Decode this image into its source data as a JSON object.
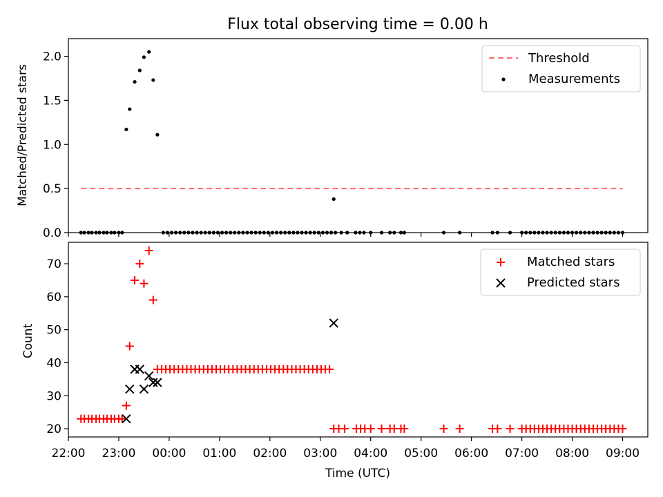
{
  "chart_data": [
    {
      "type": "scatter",
      "title": "Flux total observing time = 0.00 h",
      "xlabel": "",
      "ylabel": "Matched/Predicted stars",
      "xlim": [
        "22:00",
        "09:30"
      ],
      "ylim": [
        0,
        2.2
      ],
      "yticks": [
        "0.0",
        "0.5",
        "1.0",
        "1.5",
        "2.0"
      ],
      "grid": false,
      "legend_position": "top-right",
      "threshold": {
        "name": "Threshold",
        "value": 0.5,
        "x_range": [
          "22:15",
          "09:00"
        ],
        "color": "#ff6b6b"
      },
      "series": [
        {
          "name": "Measurements",
          "color": "#000000",
          "points": [
            [
              "22:15",
              0
            ],
            [
              "22:19",
              0
            ],
            [
              "22:24",
              0
            ],
            [
              "22:28",
              0
            ],
            [
              "22:33",
              0
            ],
            [
              "22:37",
              0
            ],
            [
              "22:42",
              0
            ],
            [
              "22:46",
              0
            ],
            [
              "22:51",
              0
            ],
            [
              "22:55",
              0
            ],
            [
              "23:00",
              0
            ],
            [
              "23:04",
              0
            ],
            [
              "23:09",
              1.17
            ],
            [
              "23:13",
              1.4
            ],
            [
              "23:19",
              1.71
            ],
            [
              "23:25",
              1.84
            ],
            [
              "23:30",
              1.99
            ],
            [
              "23:36",
              2.05
            ],
            [
              "23:41",
              1.73
            ],
            [
              "23:46",
              1.11
            ],
            [
              "23:53",
              0
            ],
            [
              "23:58",
              0
            ],
            [
              "00:03",
              0
            ],
            [
              "00:08",
              0
            ],
            [
              "00:13",
              0
            ],
            [
              "00:18",
              0
            ],
            [
              "00:23",
              0
            ],
            [
              "00:28",
              0
            ],
            [
              "00:33",
              0
            ],
            [
              "00:38",
              0
            ],
            [
              "00:43",
              0
            ],
            [
              "00:48",
              0
            ],
            [
              "00:53",
              0
            ],
            [
              "00:58",
              0
            ],
            [
              "01:03",
              0
            ],
            [
              "01:08",
              0
            ],
            [
              "01:13",
              0
            ],
            [
              "01:18",
              0
            ],
            [
              "01:23",
              0
            ],
            [
              "01:28",
              0
            ],
            [
              "01:33",
              0
            ],
            [
              "01:38",
              0
            ],
            [
              "01:43",
              0
            ],
            [
              "01:48",
              0
            ],
            [
              "01:53",
              0
            ],
            [
              "01:58",
              0
            ],
            [
              "02:03",
              0
            ],
            [
              "02:08",
              0
            ],
            [
              "02:13",
              0
            ],
            [
              "02:18",
              0
            ],
            [
              "02:23",
              0
            ],
            [
              "02:28",
              0
            ],
            [
              "02:33",
              0
            ],
            [
              "02:38",
              0
            ],
            [
              "02:43",
              0
            ],
            [
              "02:48",
              0
            ],
            [
              "02:53",
              0
            ],
            [
              "02:58",
              0
            ],
            [
              "03:03",
              0
            ],
            [
              "03:08",
              0
            ],
            [
              "03:13",
              0
            ],
            [
              "03:16",
              0.38
            ],
            [
              "03:18",
              0
            ],
            [
              "03:25",
              0
            ],
            [
              "03:32",
              0
            ],
            [
              "03:42",
              0
            ],
            [
              "03:47",
              0
            ],
            [
              "03:52",
              0
            ],
            [
              "04:00",
              0
            ],
            [
              "04:13",
              0
            ],
            [
              "04:23",
              0
            ],
            [
              "04:28",
              0
            ],
            [
              "04:36",
              0
            ],
            [
              "04:40",
              0
            ],
            [
              "05:27",
              0
            ],
            [
              "05:46",
              0
            ],
            [
              "06:25",
              0
            ],
            [
              "06:31",
              0
            ],
            [
              "06:46",
              0
            ],
            [
              "07:00",
              0
            ],
            [
              "07:05",
              0
            ],
            [
              "07:10",
              0
            ],
            [
              "07:15",
              0
            ],
            [
              "07:20",
              0
            ],
            [
              "07:25",
              0
            ],
            [
              "07:30",
              0
            ],
            [
              "07:35",
              0
            ],
            [
              "07:40",
              0
            ],
            [
              "07:45",
              0
            ],
            [
              "07:50",
              0
            ],
            [
              "07:55",
              0
            ],
            [
              "08:00",
              0
            ],
            [
              "08:05",
              0
            ],
            [
              "08:10",
              0
            ],
            [
              "08:15",
              0
            ],
            [
              "08:20",
              0
            ],
            [
              "08:25",
              0
            ],
            [
              "08:30",
              0
            ],
            [
              "08:35",
              0
            ],
            [
              "08:40",
              0
            ],
            [
              "08:45",
              0
            ],
            [
              "08:50",
              0
            ],
            [
              "08:55",
              0
            ],
            [
              "09:00",
              0
            ]
          ]
        }
      ]
    },
    {
      "type": "scatter",
      "title": "",
      "xlabel": "Time (UTC)",
      "ylabel": "Count",
      "xlim": [
        "22:00",
        "09:30"
      ],
      "ylim": [
        17.5,
        76.5
      ],
      "xticks": [
        "22:00",
        "23:00",
        "00:00",
        "01:00",
        "02:00",
        "03:00",
        "04:00",
        "05:00",
        "06:00",
        "07:00",
        "08:00",
        "09:00"
      ],
      "yticks": [
        "20",
        "30",
        "40",
        "50",
        "60",
        "70"
      ],
      "grid": false,
      "legend_position": "top-right",
      "series": [
        {
          "name": "Matched stars",
          "color": "#ff0000",
          "marker": "+",
          "points": [
            [
              "22:15",
              23
            ],
            [
              "22:19",
              23
            ],
            [
              "22:24",
              23
            ],
            [
              "22:28",
              23
            ],
            [
              "22:33",
              23
            ],
            [
              "22:37",
              23
            ],
            [
              "22:42",
              23
            ],
            [
              "22:46",
              23
            ],
            [
              "22:51",
              23
            ],
            [
              "22:55",
              23
            ],
            [
              "23:00",
              23
            ],
            [
              "23:04",
              23
            ],
            [
              "23:09",
              27
            ],
            [
              "23:13",
              45
            ],
            [
              "23:19",
              65
            ],
            [
              "23:25",
              70
            ],
            [
              "23:30",
              64
            ],
            [
              "23:36",
              74
            ],
            [
              "23:41",
              59
            ],
            [
              "23:46",
              38
            ],
            [
              "23:51",
              38
            ],
            [
              "23:56",
              38
            ],
            [
              "00:01",
              38
            ],
            [
              "00:06",
              38
            ],
            [
              "00:11",
              38
            ],
            [
              "00:16",
              38
            ],
            [
              "00:21",
              38
            ],
            [
              "00:26",
              38
            ],
            [
              "00:31",
              38
            ],
            [
              "00:36",
              38
            ],
            [
              "00:41",
              38
            ],
            [
              "00:46",
              38
            ],
            [
              "00:51",
              38
            ],
            [
              "00:56",
              38
            ],
            [
              "01:01",
              38
            ],
            [
              "01:06",
              38
            ],
            [
              "01:11",
              38
            ],
            [
              "01:16",
              38
            ],
            [
              "01:21",
              38
            ],
            [
              "01:26",
              38
            ],
            [
              "01:31",
              38
            ],
            [
              "01:36",
              38
            ],
            [
              "01:41",
              38
            ],
            [
              "01:46",
              38
            ],
            [
              "01:51",
              38
            ],
            [
              "01:56",
              38
            ],
            [
              "02:01",
              38
            ],
            [
              "02:06",
              38
            ],
            [
              "02:11",
              38
            ],
            [
              "02:16",
              38
            ],
            [
              "02:21",
              38
            ],
            [
              "02:26",
              38
            ],
            [
              "02:31",
              38
            ],
            [
              "02:36",
              38
            ],
            [
              "02:41",
              38
            ],
            [
              "02:46",
              38
            ],
            [
              "02:51",
              38
            ],
            [
              "02:56",
              38
            ],
            [
              "03:01",
              38
            ],
            [
              "03:06",
              38
            ],
            [
              "03:11",
              38
            ],
            [
              "03:16",
              20
            ],
            [
              "03:22",
              20
            ],
            [
              "03:29",
              20
            ],
            [
              "03:43",
              20
            ],
            [
              "03:48",
              20
            ],
            [
              "03:53",
              20
            ],
            [
              "04:00",
              20
            ],
            [
              "04:13",
              20
            ],
            [
              "04:23",
              20
            ],
            [
              "04:28",
              20
            ],
            [
              "04:36",
              20
            ],
            [
              "04:40",
              20
            ],
            [
              "05:27",
              20
            ],
            [
              "05:46",
              20
            ],
            [
              "06:25",
              20
            ],
            [
              "06:31",
              20
            ],
            [
              "06:46",
              20
            ],
            [
              "07:00",
              20
            ],
            [
              "07:05",
              20
            ],
            [
              "07:10",
              20
            ],
            [
              "07:15",
              20
            ],
            [
              "07:20",
              20
            ],
            [
              "07:25",
              20
            ],
            [
              "07:30",
              20
            ],
            [
              "07:35",
              20
            ],
            [
              "07:40",
              20
            ],
            [
              "07:45",
              20
            ],
            [
              "07:50",
              20
            ],
            [
              "07:55",
              20
            ],
            [
              "08:00",
              20
            ],
            [
              "08:05",
              20
            ],
            [
              "08:10",
              20
            ],
            [
              "08:15",
              20
            ],
            [
              "08:20",
              20
            ],
            [
              "08:25",
              20
            ],
            [
              "08:30",
              20
            ],
            [
              "08:35",
              20
            ],
            [
              "08:40",
              20
            ],
            [
              "08:45",
              20
            ],
            [
              "08:50",
              20
            ],
            [
              "08:55",
              20
            ],
            [
              "09:00",
              20
            ]
          ]
        },
        {
          "name": "Predicted stars",
          "color": "#000000",
          "marker": "x",
          "points": [
            [
              "23:09",
              23
            ],
            [
              "23:13",
              32
            ],
            [
              "23:19",
              38
            ],
            [
              "23:25",
              38
            ],
            [
              "23:30",
              32
            ],
            [
              "23:36",
              36
            ],
            [
              "23:41",
              34
            ],
            [
              "23:46",
              34
            ],
            [
              "03:16",
              52
            ]
          ]
        }
      ]
    }
  ]
}
